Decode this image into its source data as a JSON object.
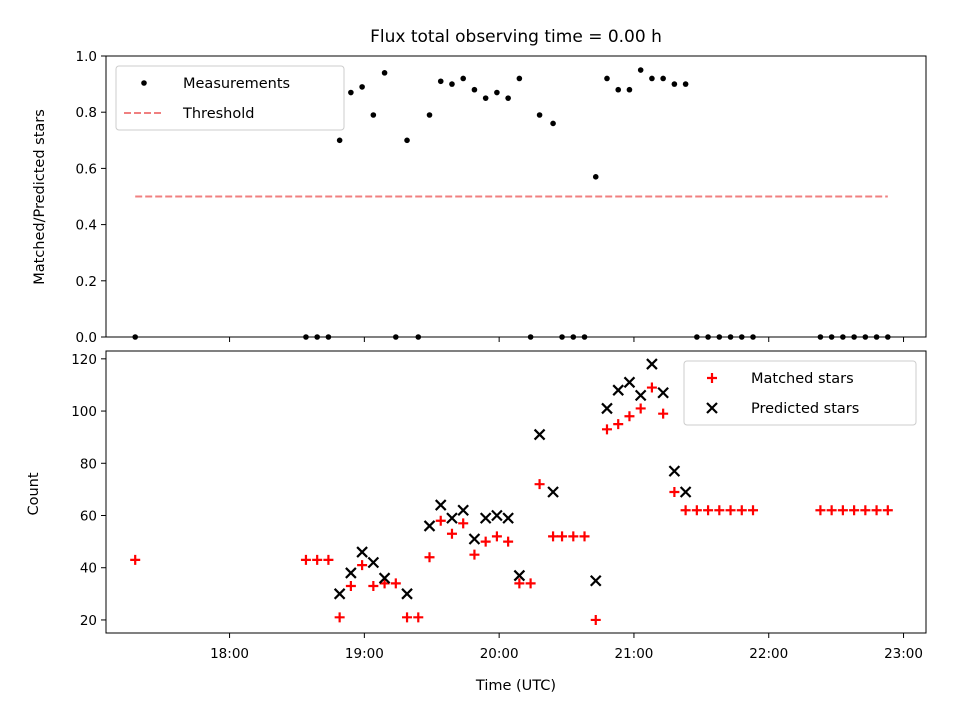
{
  "chart_data": [
    {
      "type": "scatter",
      "title": "Flux total observing time = 0.00 h",
      "xlabel": "",
      "ylabel": "Matched/Predicted stars",
      "xlim": [
        "17:05",
        "23:10"
      ],
      "ylim": [
        0,
        1.0
      ],
      "y_ticks": [
        "0.0",
        "0.2",
        "0.4",
        "0.6",
        "0.8",
        "1.0"
      ],
      "y_tick_values": [
        0,
        0.2,
        0.4,
        0.6,
        0.8,
        1.0
      ],
      "x_tick_values": [
        "18:00",
        "19:00",
        "20:00",
        "21:00",
        "22:00",
        "23:00"
      ],
      "grid": false,
      "legend_position": "top-left",
      "series": [
        {
          "name": "Measurements",
          "marker": "dot",
          "color": "#000000",
          "points": [
            [
              "17:18",
              0.0
            ],
            [
              "18:34",
              0.0
            ],
            [
              "18:39",
              0.0
            ],
            [
              "18:44",
              0.0
            ],
            [
              "18:49",
              0.7
            ],
            [
              "18:54",
              0.87
            ],
            [
              "18:59",
              0.89
            ],
            [
              "19:04",
              0.79
            ],
            [
              "19:09",
              0.94
            ],
            [
              "19:14",
              0.0
            ],
            [
              "19:19",
              0.7
            ],
            [
              "19:24",
              0.0
            ],
            [
              "19:29",
              0.79
            ],
            [
              "19:34",
              0.91
            ],
            [
              "19:39",
              0.9
            ],
            [
              "19:44",
              0.92
            ],
            [
              "19:49",
              0.88
            ],
            [
              "19:54",
              0.85
            ],
            [
              "19:59",
              0.87
            ],
            [
              "20:04",
              0.85
            ],
            [
              "20:09",
              0.92
            ],
            [
              "20:14",
              0.0
            ],
            [
              "20:18",
              0.79
            ],
            [
              "20:24",
              0.76
            ],
            [
              "20:28",
              0.0
            ],
            [
              "20:33",
              0.0
            ],
            [
              "20:38",
              0.0
            ],
            [
              "20:43",
              0.57
            ],
            [
              "20:48",
              0.92
            ],
            [
              "20:53",
              0.88
            ],
            [
              "20:58",
              0.88
            ],
            [
              "21:03",
              0.95
            ],
            [
              "21:08",
              0.92
            ],
            [
              "21:13",
              0.92
            ],
            [
              "21:18",
              0.9
            ],
            [
              "21:23",
              0.9
            ],
            [
              "21:28",
              0.0
            ],
            [
              "21:33",
              0.0
            ],
            [
              "21:38",
              0.0
            ],
            [
              "21:43",
              0.0
            ],
            [
              "21:48",
              0.0
            ],
            [
              "21:53",
              0.0
            ],
            [
              "22:23",
              0.0
            ],
            [
              "22:28",
              0.0
            ],
            [
              "22:33",
              0.0
            ],
            [
              "22:38",
              0.0
            ],
            [
              "22:43",
              0.0
            ],
            [
              "22:48",
              0.0
            ],
            [
              "22:53",
              0.0
            ]
          ]
        },
        {
          "name": "Threshold",
          "marker": "dashed-line",
          "color": "#f08080",
          "points": [
            [
              "17:18",
              0.5
            ],
            [
              "22:53",
              0.5
            ]
          ]
        }
      ]
    },
    {
      "type": "scatter",
      "title": "",
      "xlabel": "Time (UTC)",
      "ylabel": "Count",
      "xlim": [
        "17:05",
        "23:10"
      ],
      "ylim": [
        15,
        123
      ],
      "y_ticks": [
        "20",
        "40",
        "60",
        "80",
        "100",
        "120"
      ],
      "y_tick_values": [
        20,
        40,
        60,
        80,
        100,
        120
      ],
      "x_ticks": [
        "18:00",
        "19:00",
        "20:00",
        "21:00",
        "22:00",
        "23:00"
      ],
      "x_tick_values": [
        "18:00",
        "19:00",
        "20:00",
        "21:00",
        "22:00",
        "23:00"
      ],
      "grid": false,
      "legend_position": "top-right",
      "series": [
        {
          "name": "Matched stars",
          "marker": "plus",
          "color": "#ff0000",
          "points": [
            [
              "17:18",
              43
            ],
            [
              "18:34",
              43
            ],
            [
              "18:39",
              43
            ],
            [
              "18:44",
              43
            ],
            [
              "18:49",
              21
            ],
            [
              "18:54",
              33
            ],
            [
              "18:59",
              41
            ],
            [
              "19:04",
              33
            ],
            [
              "19:09",
              34
            ],
            [
              "19:14",
              34
            ],
            [
              "19:19",
              21
            ],
            [
              "19:24",
              21
            ],
            [
              "19:29",
              44
            ],
            [
              "19:34",
              58
            ],
            [
              "19:39",
              53
            ],
            [
              "19:44",
              57
            ],
            [
              "19:49",
              45
            ],
            [
              "19:54",
              50
            ],
            [
              "19:59",
              52
            ],
            [
              "20:04",
              50
            ],
            [
              "20:09",
              34
            ],
            [
              "20:14",
              34
            ],
            [
              "20:18",
              72
            ],
            [
              "20:24",
              52
            ],
            [
              "20:28",
              52
            ],
            [
              "20:33",
              52
            ],
            [
              "20:38",
              52
            ],
            [
              "20:43",
              20
            ],
            [
              "20:48",
              93
            ],
            [
              "20:53",
              95
            ],
            [
              "20:58",
              98
            ],
            [
              "21:03",
              101
            ],
            [
              "21:08",
              109
            ],
            [
              "21:13",
              99
            ],
            [
              "21:18",
              69
            ],
            [
              "21:23",
              62
            ],
            [
              "21:28",
              62
            ],
            [
              "21:33",
              62
            ],
            [
              "21:38",
              62
            ],
            [
              "21:43",
              62
            ],
            [
              "21:48",
              62
            ],
            [
              "21:53",
              62
            ],
            [
              "22:23",
              62
            ],
            [
              "22:28",
              62
            ],
            [
              "22:33",
              62
            ],
            [
              "22:38",
              62
            ],
            [
              "22:43",
              62
            ],
            [
              "22:48",
              62
            ],
            [
              "22:53",
              62
            ]
          ]
        },
        {
          "name": "Predicted stars",
          "marker": "x",
          "color": "#000000",
          "points": [
            [
              "18:49",
              30
            ],
            [
              "18:54",
              38
            ],
            [
              "18:59",
              46
            ],
            [
              "19:04",
              42
            ],
            [
              "19:09",
              36
            ],
            [
              "19:19",
              30
            ],
            [
              "19:29",
              56
            ],
            [
              "19:34",
              64
            ],
            [
              "19:39",
              59
            ],
            [
              "19:44",
              62
            ],
            [
              "19:49",
              51
            ],
            [
              "19:54",
              59
            ],
            [
              "19:59",
              60
            ],
            [
              "20:04",
              59
            ],
            [
              "20:09",
              37
            ],
            [
              "20:18",
              91
            ],
            [
              "20:24",
              69
            ],
            [
              "20:43",
              35
            ],
            [
              "20:48",
              101
            ],
            [
              "20:53",
              108
            ],
            [
              "20:58",
              111
            ],
            [
              "21:03",
              106
            ],
            [
              "21:08",
              118
            ],
            [
              "21:13",
              107
            ],
            [
              "21:18",
              77
            ],
            [
              "21:23",
              69
            ]
          ]
        }
      ]
    }
  ]
}
